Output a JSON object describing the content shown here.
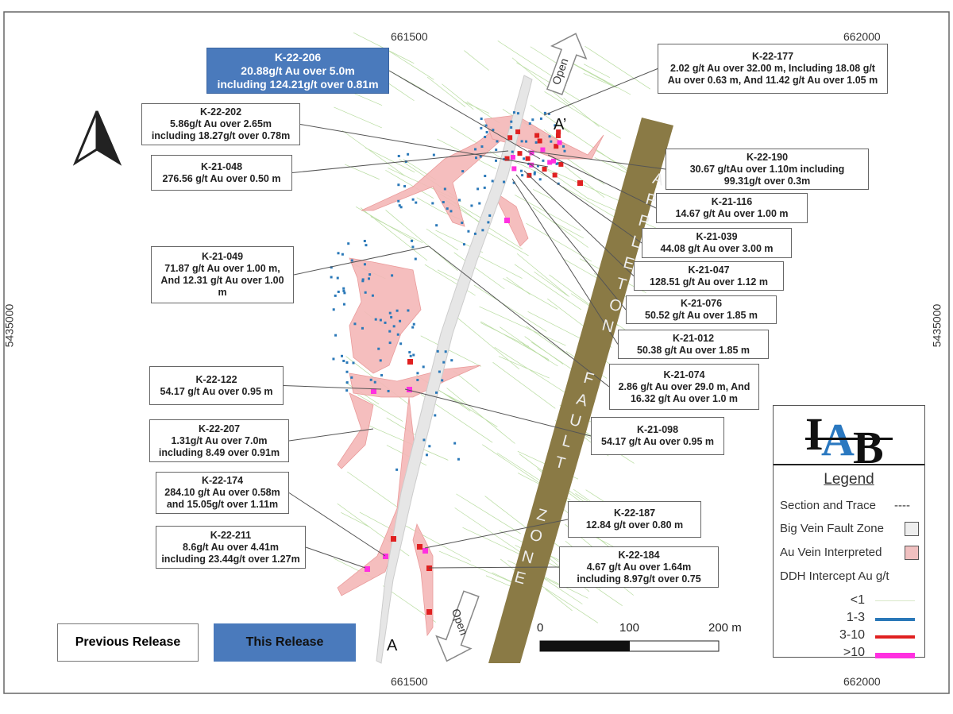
{
  "axes": {
    "top": [
      "661500",
      "662000"
    ],
    "bottom": [
      "661500",
      "662000"
    ],
    "left": "5435000",
    "right": "5435000"
  },
  "fault_zone_label": "APPLETON FAULT ZONE",
  "section": {
    "start": "A",
    "end": "A’"
  },
  "open_labels": [
    "Open",
    "Open"
  ],
  "callouts": [
    {
      "id": "K-22-206",
      "lines": [
        "20.88g/t Au over 5.0m",
        "including 124.21g/t over 0.81m"
      ],
      "release": "this"
    },
    {
      "id": "K-22-202",
      "lines": [
        "5.86g/t Au over 2.65m",
        "including 18.27g/t over 0.78m"
      ]
    },
    {
      "id": "K-21-048",
      "lines": [
        "276.56 g/t Au over 0.50 m"
      ]
    },
    {
      "id": "K-21-049",
      "lines": [
        "71.87 g/t Au over 1.00 m,",
        "And 12.31 g/t Au over 1.00",
        "m"
      ]
    },
    {
      "id": "K-22-122",
      "lines": [
        "54.17 g/t Au over 0.95 m"
      ]
    },
    {
      "id": "K-22-207",
      "lines": [
        "1.31g/t Au over 7.0m",
        "including 8.49 over 0.91m"
      ]
    },
    {
      "id": "K-22-174",
      "lines": [
        "284.10 g/t Au over 0.58m",
        "and 15.05g/t over 1.11m"
      ]
    },
    {
      "id": "K-22-211",
      "lines": [
        "8.6g/t Au over 4.41m",
        "including 23.44g/t over 1.27m"
      ]
    },
    {
      "id": "K-22-177",
      "lines": [
        "2.02 g/t Au over 32.00 m, Including 18.08 g/t",
        "Au over 0.63 m, And 11.42 g/t Au over 1.05 m"
      ]
    },
    {
      "id": "K-22-190",
      "lines": [
        "30.67 g/tAu over 1.10m including",
        "99.31g/t over 0.3m"
      ]
    },
    {
      "id": "K-21-116",
      "lines": [
        "14.67 g/t Au over 1.00 m"
      ]
    },
    {
      "id": "K-21-039",
      "lines": [
        "44.08 g/t Au over  3.00 m"
      ]
    },
    {
      "id": "K-21-047",
      "lines": [
        "128.51 g/t Au over  1.12 m"
      ]
    },
    {
      "id": "K-21-076",
      "lines": [
        "50.52 g/t Au over 1.85 m"
      ]
    },
    {
      "id": "K-21-012",
      "lines": [
        "50.38 g/t Au over 1.85 m"
      ]
    },
    {
      "id": "K-21-074",
      "lines": [
        "2.86 g/t Au over 29.0 m, And",
        "16.32 g/t Au over 1.0 m"
      ]
    },
    {
      "id": "K-21-098",
      "lines": [
        "54.17 g/t Au over 0.95 m"
      ]
    },
    {
      "id": "K-22-187",
      "lines": [
        "12.84  g/t over  0.80 m"
      ]
    },
    {
      "id": "K-22-184",
      "lines": [
        "4.67 g/t Au over 1.64m",
        "including 8.97g/t over 0.75"
      ]
    }
  ],
  "release_keys": {
    "previous": "Previous Release",
    "this": "This Release"
  },
  "scale": {
    "ticks": [
      "0",
      "100",
      "200 m"
    ]
  },
  "legend": {
    "logo": "IAB",
    "title": "Legend",
    "section_trace": "Section and Trace",
    "section_trace_symbol": "----",
    "big_vein": "Big Vein Fault Zone",
    "au_vein": "Au Vein Interpreted",
    "ddh": "DDH Intercept Au g/t",
    "classes": [
      {
        "label": "<1",
        "color": "#d8e8c8"
      },
      {
        "label": "1-3",
        "color": "#2a78b8"
      },
      {
        "label": "3-10",
        "color": "#e02020"
      },
      {
        "label": ">10",
        "color": "#ff30e0"
      }
    ]
  },
  "colors": {
    "fault": "#8a7a45",
    "big_vein": "#e6e6e6",
    "au_vein": "#f4b8b8",
    "this_release": "#4a7abc"
  }
}
